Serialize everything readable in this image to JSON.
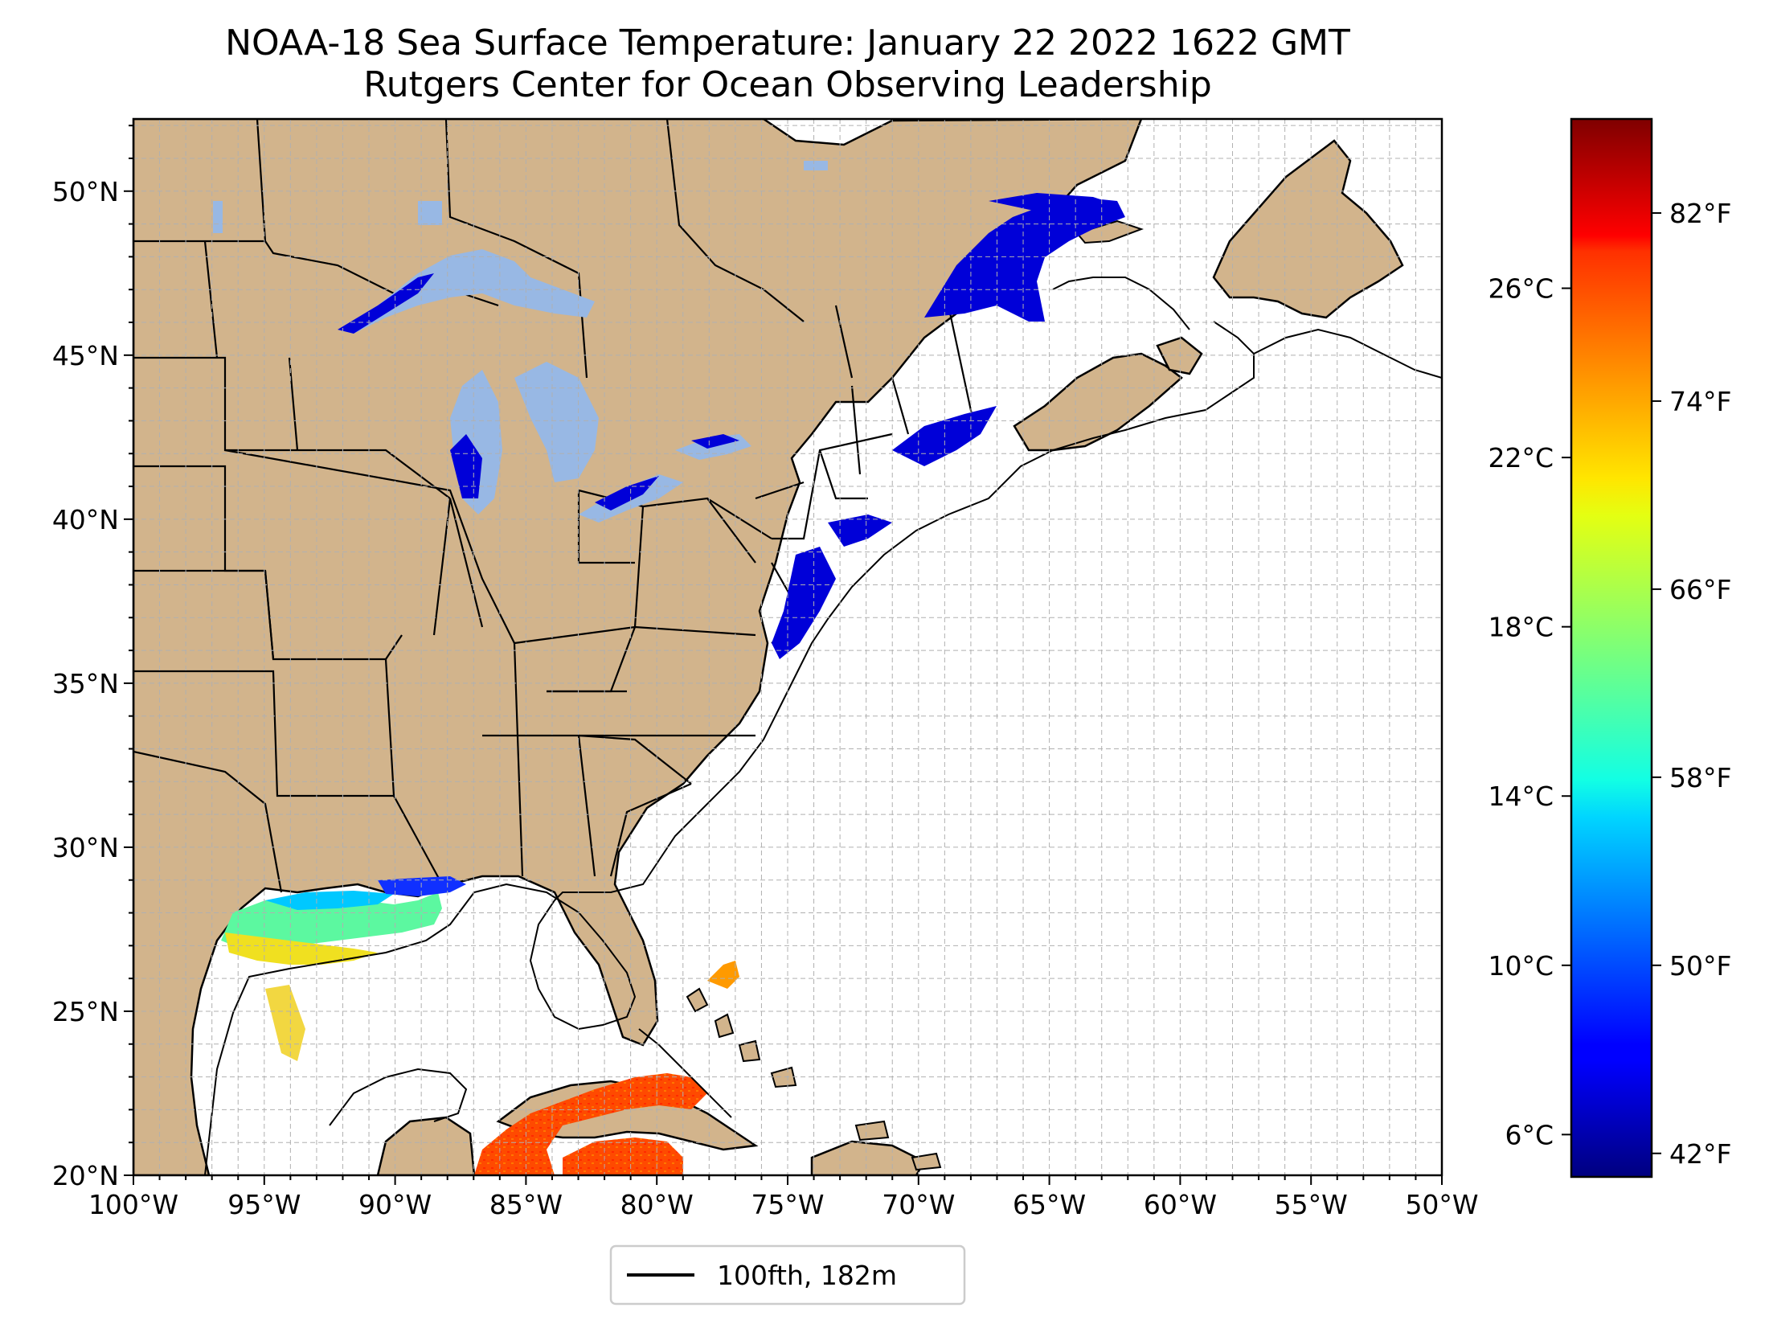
{
  "title": "NOAA-18 Sea Surface Temperature: January 22 2022 1622 GMT",
  "subtitle": "Rutgers Center for Ocean Observing Leadership",
  "map": {
    "lon_range": [
      -100,
      -50
    ],
    "lat_range": [
      20,
      52.2
    ],
    "lon_ticks": [
      {
        "value": -100,
        "label": "100°W"
      },
      {
        "value": -95,
        "label": "95°W"
      },
      {
        "value": -90,
        "label": "90°W"
      },
      {
        "value": -85,
        "label": "85°W"
      },
      {
        "value": -80,
        "label": "80°W"
      },
      {
        "value": -75,
        "label": "75°W"
      },
      {
        "value": -70,
        "label": "70°W"
      },
      {
        "value": -65,
        "label": "65°W"
      },
      {
        "value": -60,
        "label": "60°W"
      },
      {
        "value": -55,
        "label": "55°W"
      },
      {
        "value": -50,
        "label": "50°W"
      }
    ],
    "lat_ticks": [
      {
        "value": 20,
        "label": "20°N"
      },
      {
        "value": 25,
        "label": "25°N"
      },
      {
        "value": 30,
        "label": "30°N"
      },
      {
        "value": 35,
        "label": "35°N"
      },
      {
        "value": 40,
        "label": "40°N"
      },
      {
        "value": 45,
        "label": "45°N"
      },
      {
        "value": 50,
        "label": "50°N"
      }
    ],
    "gridlines": true,
    "grid_spacing_deg": 1,
    "land_color": "#d2b48c",
    "lake_color": "#98b8e4",
    "ocean_color": "#ffffff",
    "legend": {
      "entry": "100fth, 182m",
      "placement": "below-center"
    }
  },
  "colorbar": {
    "cmap": "jet",
    "range_c": [
      5,
      30
    ],
    "celsius_ticks": [
      {
        "value": 6,
        "label": "6°C"
      },
      {
        "value": 10,
        "label": "10°C"
      },
      {
        "value": 14,
        "label": "14°C"
      },
      {
        "value": 18,
        "label": "18°C"
      },
      {
        "value": 22,
        "label": "22°C"
      },
      {
        "value": 26,
        "label": "26°C"
      }
    ],
    "fahrenheit_ticks": [
      {
        "value": 42,
        "label": "42°F"
      },
      {
        "value": 50,
        "label": "50°F"
      },
      {
        "value": 58,
        "label": "58°F"
      },
      {
        "value": 66,
        "label": "66°F"
      },
      {
        "value": 74,
        "label": "74°F"
      },
      {
        "value": 82,
        "label": "82°F"
      }
    ]
  }
}
